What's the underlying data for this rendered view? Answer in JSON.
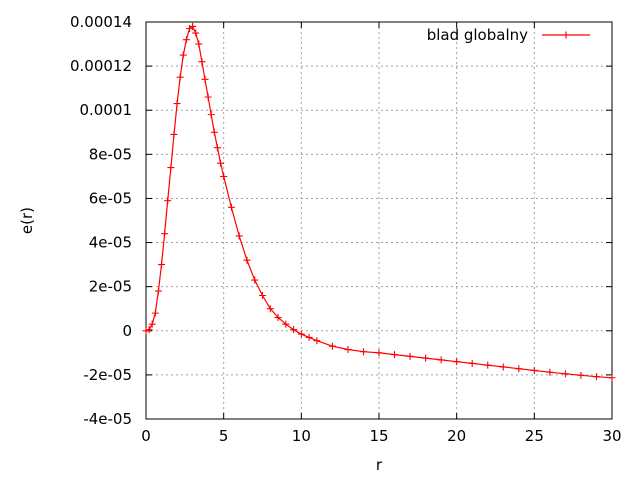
{
  "chart_data": {
    "type": "line",
    "title": "",
    "xlabel": "r",
    "ylabel": "e(r)",
    "xlim": [
      0,
      30
    ],
    "ylim": [
      -4e-05,
      0.00014
    ],
    "grid": true,
    "legend_position": "top-right",
    "x_ticks": [
      {
        "value": 0,
        "label": "0"
      },
      {
        "value": 5,
        "label": "5"
      },
      {
        "value": 10,
        "label": "10"
      },
      {
        "value": 15,
        "label": "15"
      },
      {
        "value": 20,
        "label": "20"
      },
      {
        "value": 25,
        "label": "25"
      },
      {
        "value": 30,
        "label": "30"
      }
    ],
    "y_ticks": [
      {
        "value": -4e-05,
        "label": "-4e-05"
      },
      {
        "value": -2e-05,
        "label": "-2e-05"
      },
      {
        "value": 0,
        "label": "0"
      },
      {
        "value": 2e-05,
        "label": "2e-05"
      },
      {
        "value": 4e-05,
        "label": "4e-05"
      },
      {
        "value": 6e-05,
        "label": "6e-05"
      },
      {
        "value": 8e-05,
        "label": "8e-05"
      },
      {
        "value": 0.0001,
        "label": "0.0001"
      },
      {
        "value": 0.00012,
        "label": "0.00012"
      },
      {
        "value": 0.00014,
        "label": "0.00014"
      }
    ],
    "series": [
      {
        "name": "blad globalny",
        "color": "#ff0000",
        "marker": "plus",
        "x": [
          0,
          0.2,
          0.4,
          0.6,
          0.8,
          1.0,
          1.2,
          1.4,
          1.6,
          1.8,
          2.0,
          2.2,
          2.4,
          2.6,
          2.8,
          3.0,
          3.2,
          3.4,
          3.6,
          3.8,
          4.0,
          4.2,
          4.4,
          4.6,
          4.8,
          5.0,
          5.5,
          6.0,
          6.5,
          7.0,
          7.5,
          8.0,
          8.5,
          9.0,
          9.5,
          10.0,
          10.5,
          11.0,
          12.0,
          13.0,
          14.0,
          15.0,
          16.0,
          17.0,
          18.0,
          19.0,
          20.0,
          21.0,
          22.0,
          23.0,
          24.0,
          25.0,
          26.0,
          27.0,
          28.0,
          29.0,
          30.0
        ],
        "y": [
          0,
          5e-07,
          3e-06,
          8e-06,
          1.8e-05,
          3e-05,
          4.4e-05,
          5.9e-05,
          7.4e-05,
          8.9e-05,
          0.000103,
          0.000115,
          0.000125,
          0.000132,
          0.000137,
          0.000138,
          0.000135,
          0.00013,
          0.000122,
          0.000114,
          0.000106,
          9.8e-05,
          9e-05,
          8.3e-05,
          7.6e-05,
          7e-05,
          5.6e-05,
          4.3e-05,
          3.2e-05,
          2.3e-05,
          1.6e-05,
          1e-05,
          6e-06,
          3e-06,
          5e-07,
          -1.5e-06,
          -3e-06,
          -4.5e-06,
          -7e-06,
          -8.5e-06,
          -9.5e-06,
          -1e-05,
          -1.08e-05,
          -1.16e-05,
          -1.24e-05,
          -1.32e-05,
          -1.4e-05,
          -1.48e-05,
          -1.56e-05,
          -1.64e-05,
          -1.72e-05,
          -1.8e-05,
          -1.88e-05,
          -1.95e-05,
          -2.02e-05,
          -2.08e-05,
          -2.13e-05
        ]
      }
    ]
  }
}
